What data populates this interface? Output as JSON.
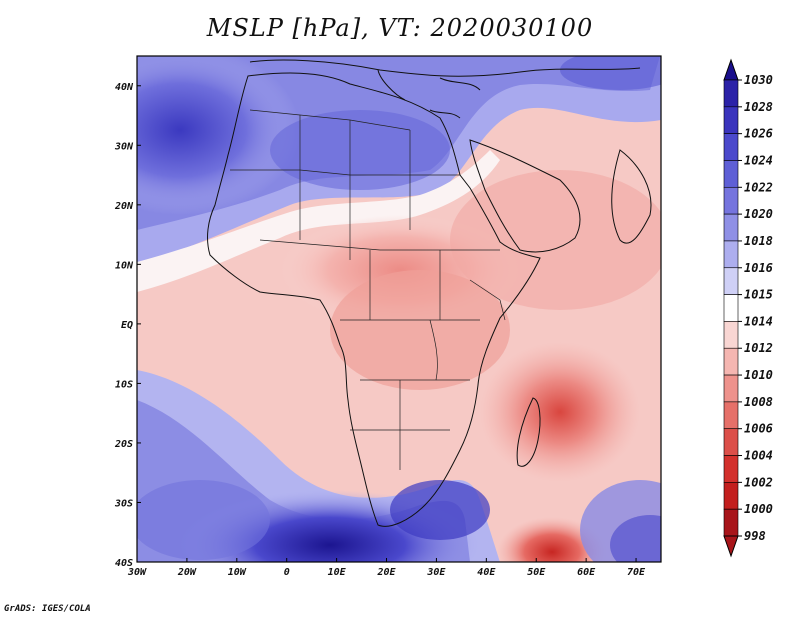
{
  "title": "MSLP [hPa], VT: 2020030100",
  "footer": "GrADS: IGES/COLA",
  "map": {
    "lon_range": [
      -30,
      75
    ],
    "lat_range": [
      -40,
      45
    ],
    "x_ticks": [
      "30W",
      "20W",
      "10W",
      "0",
      "10E",
      "20E",
      "30E",
      "40E",
      "50E",
      "60E",
      "70E"
    ],
    "y_ticks": [
      "40N",
      "30N",
      "20N",
      "10N",
      "EQ",
      "10S",
      "20S",
      "30S",
      "40S"
    ],
    "highs": [
      {
        "label": "subtropical-high-north-atlantic",
        "lon": -22,
        "lat": 32
      },
      {
        "label": "high-south-africa",
        "lon": 18,
        "lat": -38
      }
    ],
    "lows": [
      {
        "label": "low-madagascar",
        "lon": 54,
        "lat": -16
      },
      {
        "label": "low-southern-ocean",
        "lon": 52,
        "lat": -40
      }
    ]
  },
  "colorbar": {
    "levels": [
      "1030",
      "1028",
      "1026",
      "1024",
      "1022",
      "1020",
      "1018",
      "1016",
      "1015",
      "1014",
      "1012",
      "1010",
      "1008",
      "1006",
      "1004",
      "1002",
      "1000",
      "998"
    ],
    "colors": [
      "#1a0f8c",
      "#2b22a8",
      "#3a34bd",
      "#4b49cc",
      "#5e5fd6",
      "#7574de",
      "#8f90e6",
      "#adaeef",
      "#cfd0f6",
      "#ffffff",
      "#f9d6d3",
      "#f5b6b1",
      "#ee928c",
      "#e67069",
      "#dc4f49",
      "#d3302c",
      "#c31f1e",
      "#a8151a"
    ]
  }
}
